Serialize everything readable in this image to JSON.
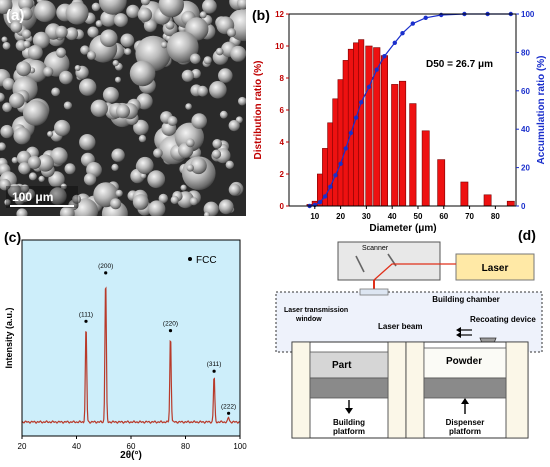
{
  "panel_a": {
    "label": "(a)",
    "scale_bar": "100 μm"
  },
  "chart_data": [
    {
      "panel": "(b)",
      "type": "bar",
      "xlabel": "Diameter (μm)",
      "ylabel": "Distribution ratio (%)",
      "y2label": "Accumulation ratio (%)",
      "annotation": "D50 = 26.7 μm",
      "xlim": [
        0,
        88
      ],
      "ylim": [
        0,
        12
      ],
      "y2lim": [
        0,
        100
      ],
      "xticks": [
        "10",
        "20",
        "30",
        "40",
        "50",
        "60",
        "70",
        "80"
      ],
      "yticks": [
        "0",
        "2",
        "4",
        "6",
        "8",
        "10",
        "12"
      ],
      "y2ticks": [
        "0",
        "20",
        "40",
        "60",
        "80",
        "100"
      ],
      "bar_color": "#ee1111",
      "curve_color": "#1a2fcc",
      "bars": [
        {
          "x": 8,
          "y": 0.1
        },
        {
          "x": 10,
          "y": 0.3
        },
        {
          "x": 12,
          "y": 2.0
        },
        {
          "x": 14,
          "y": 3.6
        },
        {
          "x": 16,
          "y": 5.2
        },
        {
          "x": 18,
          "y": 6.7
        },
        {
          "x": 20,
          "y": 7.9
        },
        {
          "x": 22,
          "y": 9.1
        },
        {
          "x": 24,
          "y": 9.8
        },
        {
          "x": 26,
          "y": 10.2
        },
        {
          "x": 28,
          "y": 10.4
        },
        {
          "x": 31,
          "y": 10.0
        },
        {
          "x": 34,
          "y": 9.9
        },
        {
          "x": 37,
          "y": 9.4
        },
        {
          "x": 41,
          "y": 7.6
        },
        {
          "x": 44,
          "y": 7.8
        },
        {
          "x": 48,
          "y": 6.4
        },
        {
          "x": 53,
          "y": 4.7
        },
        {
          "x": 59,
          "y": 2.9
        },
        {
          "x": 68,
          "y": 1.5
        },
        {
          "x": 77,
          "y": 0.7
        },
        {
          "x": 86,
          "y": 0.3
        }
      ],
      "cumulative": [
        {
          "x": 8,
          "y": 0
        },
        {
          "x": 10,
          "y": 0.5
        },
        {
          "x": 12,
          "y": 2
        },
        {
          "x": 14,
          "y": 5
        },
        {
          "x": 16,
          "y": 10
        },
        {
          "x": 18,
          "y": 16
        },
        {
          "x": 20,
          "y": 22
        },
        {
          "x": 22,
          "y": 30
        },
        {
          "x": 24,
          "y": 38
        },
        {
          "x": 26,
          "y": 46
        },
        {
          "x": 28,
          "y": 54
        },
        {
          "x": 31,
          "y": 62
        },
        {
          "x": 34,
          "y": 71
        },
        {
          "x": 37,
          "y": 78
        },
        {
          "x": 41,
          "y": 85
        },
        {
          "x": 44,
          "y": 90
        },
        {
          "x": 48,
          "y": 95
        },
        {
          "x": 53,
          "y": 98
        },
        {
          "x": 59,
          "y": 99.5
        },
        {
          "x": 68,
          "y": 100
        },
        {
          "x": 77,
          "y": 100
        },
        {
          "x": 86,
          "y": 100
        }
      ]
    },
    {
      "panel": "(c)",
      "type": "line",
      "xlabel": "2θ(°)",
      "ylabel": "Intensity (a.u.)",
      "xlim": [
        20,
        100
      ],
      "xticks": [
        "20",
        "40",
        "60",
        "80",
        "100"
      ],
      "legend": "FCC",
      "background": "#cdeefa",
      "line_color": "#b83a2a",
      "peaks": [
        {
          "label": "(111)",
          "x": 43.5,
          "y": 0.62
        },
        {
          "label": "(200)",
          "x": 50.7,
          "y": 0.93
        },
        {
          "label": "(220)",
          "x": 74.5,
          "y": 0.56
        },
        {
          "label": "(311)",
          "x": 90.5,
          "y": 0.3
        },
        {
          "label": "(222)",
          "x": 95.8,
          "y": 0.03
        }
      ]
    }
  ],
  "panel_d": {
    "label": "(d)",
    "scanner": "Scanner",
    "laser": "Laser",
    "building_chamber": "Building chamber",
    "window_line1": "Laser transmission",
    "window_line2": "window",
    "laser_beam": "Laser beam",
    "recoating": "Recoating device",
    "part": "Part",
    "powder": "Powder",
    "building_platform_1": "Building",
    "building_platform_2": "platform",
    "dispenser_platform_1": "Dispenser",
    "dispenser_platform_2": "platform"
  }
}
